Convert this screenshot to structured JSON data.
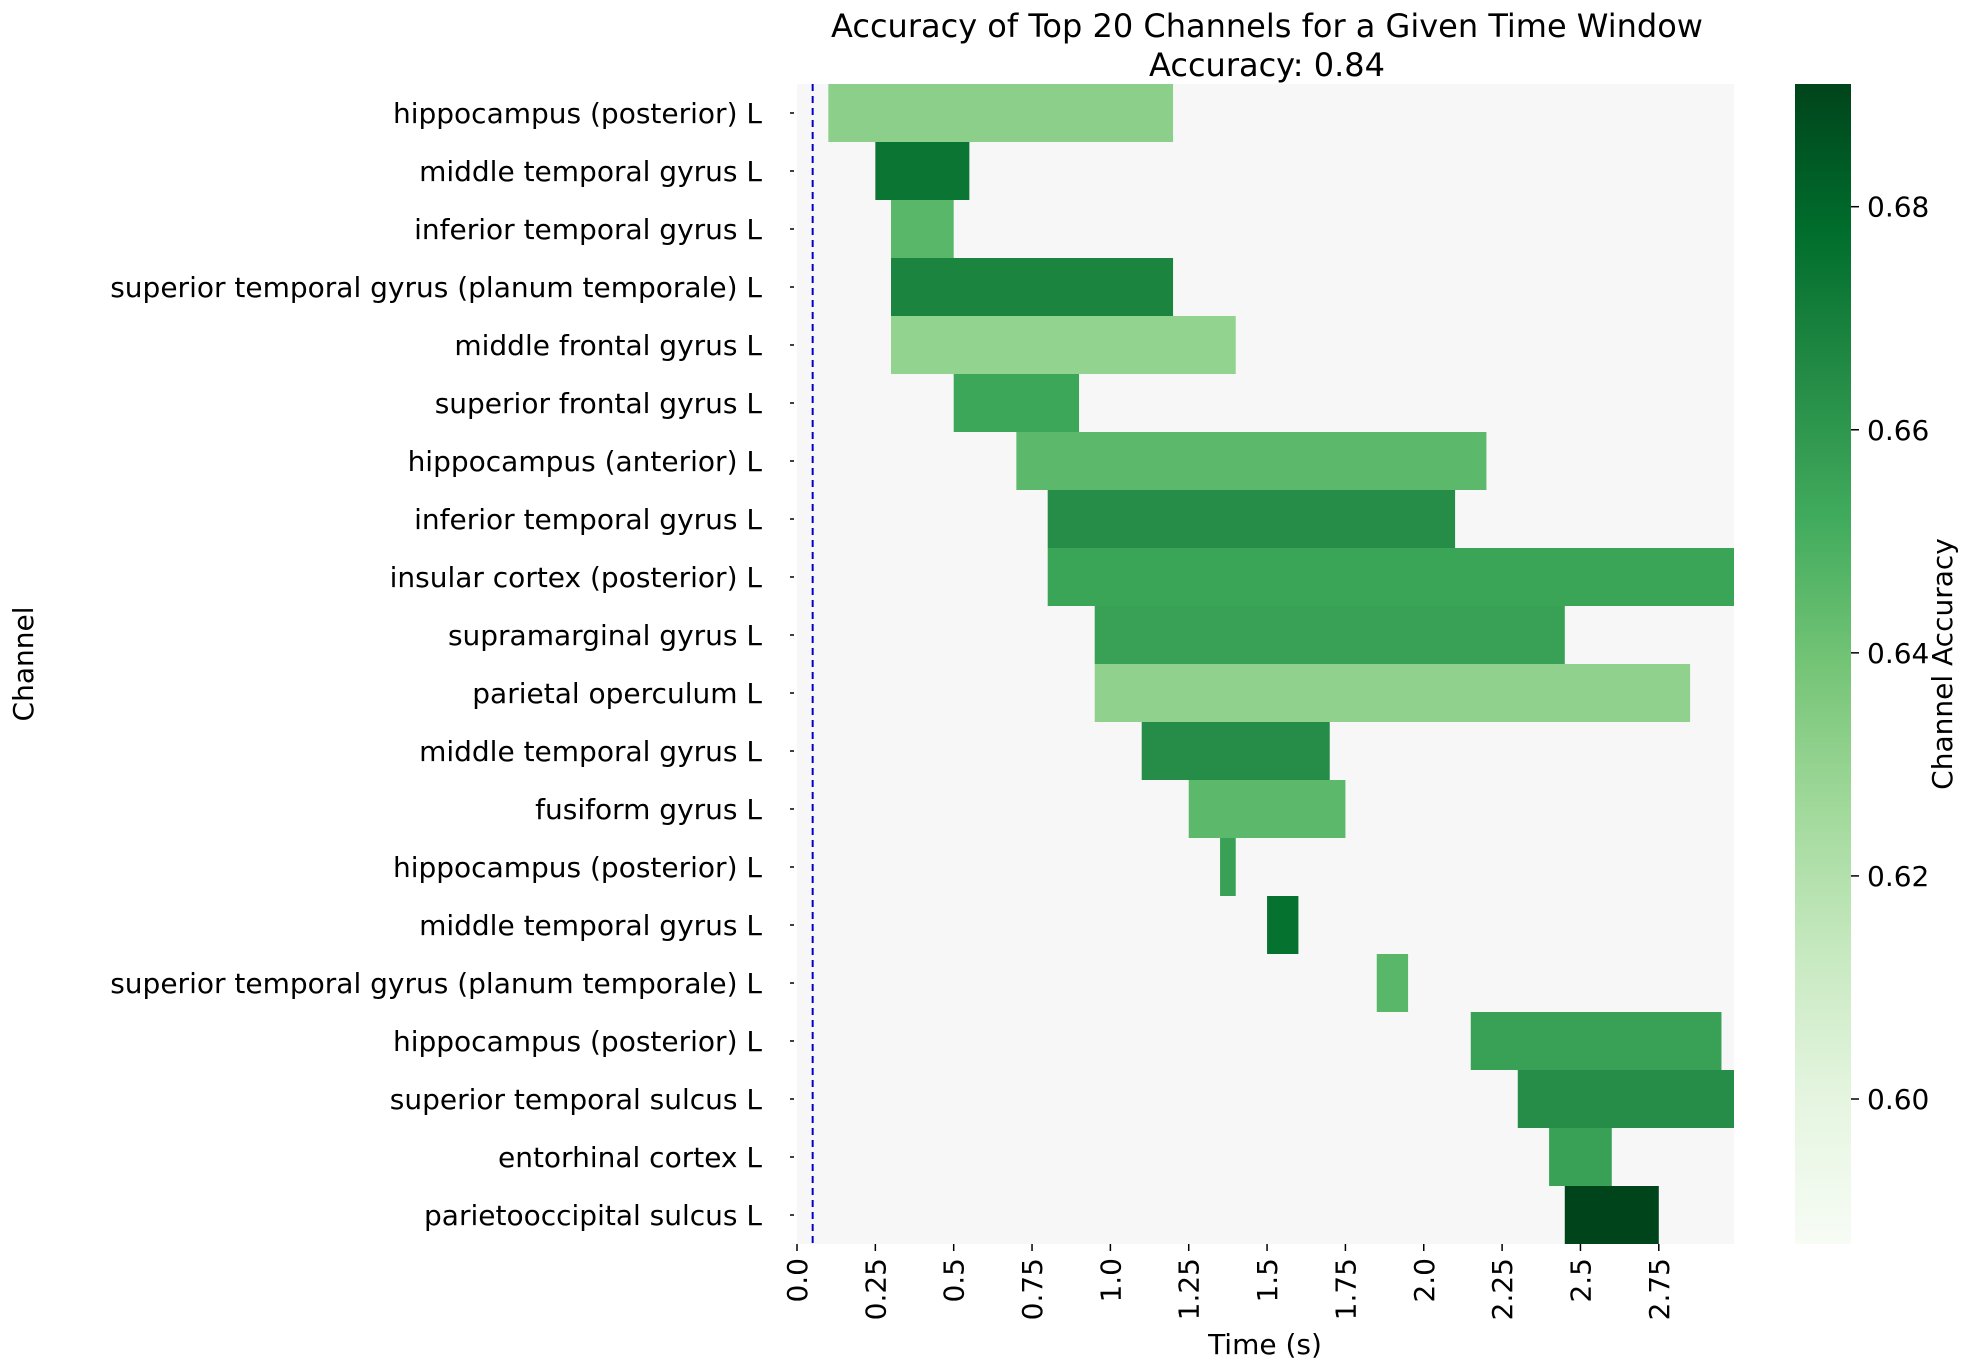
{
  "chart_data": {
    "type": "heatmap",
    "title": "Accuracy of Top 20 Channels for a Given Time Window",
    "subtitle": "Accuracy: 0.84",
    "xlabel": "Time (s)",
    "ylabel": "Channel",
    "colorbar_label": "Channel Accuracy",
    "xlim": [
      0,
      2.99
    ],
    "x_ticks": [
      0.0,
      0.25,
      0.5,
      0.75,
      1.0,
      1.25,
      1.5,
      1.75,
      2.0,
      2.25,
      2.5,
      2.75
    ],
    "x_tick_labels": [
      "0.0",
      "0.25",
      "0.5",
      "0.75",
      "1.0",
      "1.25",
      "1.5",
      "1.75",
      "2.0",
      "2.25",
      "2.5",
      "2.75"
    ],
    "colorbar_range": [
      0.587,
      0.691
    ],
    "colorbar_ticks": [
      0.6,
      0.62,
      0.64,
      0.66,
      0.68
    ],
    "colorbar_tick_labels": [
      "0.60",
      "0.62",
      "0.64",
      "0.66",
      "0.68"
    ],
    "colormap": "Greens",
    "background_color": "#f7f7f7",
    "marker_line": {
      "x": 0.05,
      "color": "#0000cc",
      "style": "dashed"
    },
    "rows": [
      {
        "channel": "hippocampus (posterior) L",
        "start": 0.1,
        "end": 1.2,
        "accuracy": 0.632
      },
      {
        "channel": "middle temporal gyrus L",
        "start": 0.25,
        "end": 0.55,
        "accuracy": 0.674
      },
      {
        "channel": "inferior temporal gyrus L",
        "start": 0.3,
        "end": 0.5,
        "accuracy": 0.646
      },
      {
        "channel": "superior temporal gyrus (planum temporale) L",
        "start": 0.3,
        "end": 1.2,
        "accuracy": 0.668
      },
      {
        "channel": "middle frontal gyrus L",
        "start": 0.3,
        "end": 1.4,
        "accuracy": 0.63
      },
      {
        "channel": "superior frontal gyrus L",
        "start": 0.5,
        "end": 0.9,
        "accuracy": 0.654
      },
      {
        "channel": "hippocampus (anterior) L",
        "start": 0.7,
        "end": 2.2,
        "accuracy": 0.645
      },
      {
        "channel": "inferior temporal gyrus L",
        "start": 0.8,
        "end": 2.1,
        "accuracy": 0.664
      },
      {
        "channel": "insular cortex (posterior) L",
        "start": 0.8,
        "end": 2.99,
        "accuracy": 0.655
      },
      {
        "channel": "supramarginal gyrus L",
        "start": 0.95,
        "end": 2.45,
        "accuracy": 0.656
      },
      {
        "channel": "parietal operculum L",
        "start": 0.95,
        "end": 2.85,
        "accuracy": 0.631
      },
      {
        "channel": "middle temporal gyrus L",
        "start": 1.1,
        "end": 1.7,
        "accuracy": 0.664
      },
      {
        "channel": "fusiform gyrus L",
        "start": 1.25,
        "end": 1.75,
        "accuracy": 0.645
      },
      {
        "channel": "hippocampus (posterior) L",
        "start": 1.35,
        "end": 1.4,
        "accuracy": 0.656
      },
      {
        "channel": "middle temporal gyrus L",
        "start": 1.5,
        "end": 1.6,
        "accuracy": 0.676
      },
      {
        "channel": "superior temporal gyrus (planum temporale) L",
        "start": 1.85,
        "end": 1.95,
        "accuracy": 0.646
      },
      {
        "channel": "hippocampus (posterior) L",
        "start": 2.15,
        "end": 2.95,
        "accuracy": 0.656
      },
      {
        "channel": "superior temporal sulcus L",
        "start": 2.3,
        "end": 2.99,
        "accuracy": 0.664
      },
      {
        "channel": "entorhinal cortex L",
        "start": 2.4,
        "end": 2.6,
        "accuracy": 0.656
      },
      {
        "channel": "parietooccipital sulcus L",
        "start": 2.45,
        "end": 2.75,
        "accuracy": 0.691
      }
    ]
  }
}
